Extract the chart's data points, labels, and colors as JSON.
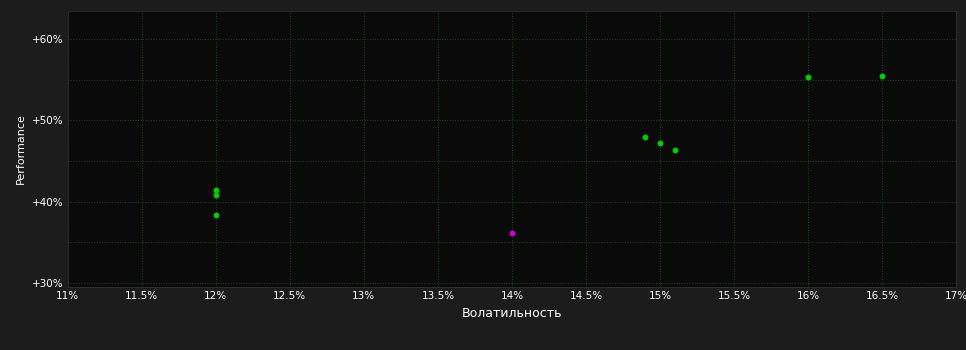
{
  "background_color": "#1c1c1c",
  "plot_bg_color": "#0a0a0a",
  "grid_color": "#1a4d1a",
  "text_color": "#ffffff",
  "xlabel": "Волатильность",
  "ylabel": "Performance",
  "xlim": [
    0.11,
    0.17
  ],
  "ylim": [
    0.295,
    0.635
  ],
  "xticks": [
    0.11,
    0.115,
    0.12,
    0.125,
    0.13,
    0.135,
    0.14,
    0.145,
    0.15,
    0.155,
    0.16,
    0.165,
    0.17
  ],
  "yticks": [
    0.3,
    0.35,
    0.4,
    0.45,
    0.5,
    0.55,
    0.6
  ],
  "ytick_labels": [
    "+30%",
    "",
    "+40%",
    "",
    "+50%",
    "",
    "+60%"
  ],
  "xtick_labels": [
    "11%",
    "11.5%",
    "12%",
    "12.5%",
    "13%",
    "13.5%",
    "14%",
    "14.5%",
    "15%",
    "15.5%",
    "16%",
    "16.5%",
    "17%"
  ],
  "green_points": [
    [
      0.12,
      0.414
    ],
    [
      0.12,
      0.408
    ],
    [
      0.12,
      0.384
    ],
    [
      0.149,
      0.48
    ],
    [
      0.15,
      0.472
    ],
    [
      0.151,
      0.463
    ],
    [
      0.16,
      0.553
    ],
    [
      0.165,
      0.554
    ]
  ],
  "magenta_points": [
    [
      0.14,
      0.362
    ]
  ],
  "green_color": "#00cc00",
  "magenta_color": "#cc00cc",
  "marker_size": 18,
  "figsize": [
    9.66,
    3.5
  ],
  "dpi": 100
}
